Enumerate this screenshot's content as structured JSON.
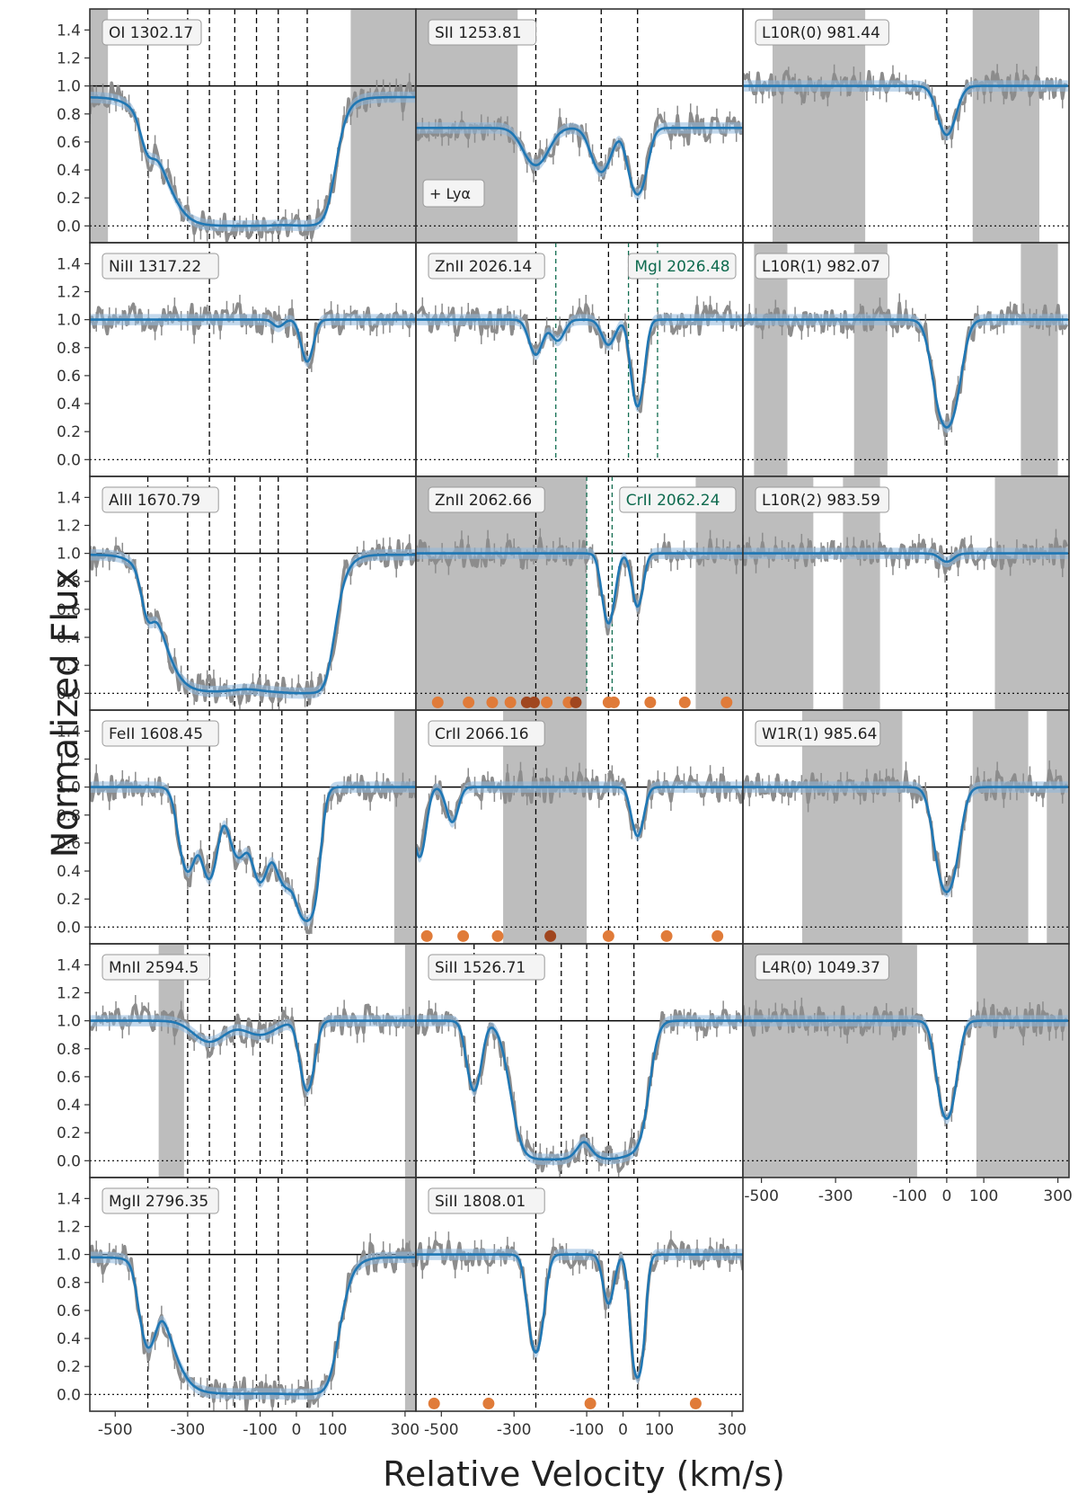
{
  "figure": {
    "ylabel": "Normalized Flux",
    "xlabel": "Relative Velocity (km/s)"
  },
  "colors": {
    "data": "#8c8c8c",
    "model": "#1f77b4",
    "band": "#8fb8dc",
    "mask": "#bdbdbd",
    "dots": "#e07b39",
    "dots_dark": "#a0461f",
    "blend": "#0f6b4f"
  },
  "chart_data": {
    "type": "line",
    "y_ticks": [
      "1.4",
      "1.2",
      "1.0",
      "0.8",
      "0.6",
      "0.4",
      "0.2",
      "0.0"
    ],
    "ylim": [
      -0.12,
      1.55
    ],
    "columns": [
      {
        "xlim": [
          -570,
          330
        ],
        "x_ticks": [
          -500,
          -300,
          -100,
          0,
          100,
          300
        ],
        "x_tick_labels": [
          "-500",
          "-300",
          "-100",
          "0",
          "100",
          "300"
        ]
      },
      {
        "xlim": [
          -570,
          330
        ],
        "x_ticks": [
          -500,
          -300,
          -100,
          0,
          100,
          300
        ],
        "x_tick_labels": [
          "-500",
          "-300",
          "-100",
          "0",
          "100",
          "300"
        ]
      },
      {
        "xlim": [
          -550,
          330
        ],
        "x_ticks": [
          -500,
          -300,
          -100,
          0,
          100,
          300
        ],
        "x_tick_labels": [
          "-500",
          "-300",
          "-100",
          "0",
          "100",
          "300"
        ]
      }
    ],
    "panels": [
      {
        "label": "OI 1302.17",
        "row": 0,
        "col": 0,
        "continuum": 0.92,
        "components": [
          {
            "v": -410,
            "d": 0.25,
            "w": 25
          },
          {
            "v": -200,
            "d": 1.0,
            "w": 130
          },
          {
            "v": -100,
            "d": 1.0,
            "w": 120
          },
          {
            "v": 30,
            "d": 1.0,
            "w": 55
          }
        ],
        "vlines": [
          -410,
          -300,
          -240,
          -170,
          -110,
          -50,
          30
        ],
        "mask": [
          [
            -570,
            -520
          ],
          [
            150,
            330
          ]
        ]
      },
      {
        "label": "SII 1253.81",
        "row": 0,
        "col": 1,
        "continuum": 0.7,
        "note": "+ Lyα",
        "components": [
          {
            "v": -240,
            "d": 0.38,
            "w": 45
          },
          {
            "v": -60,
            "d": 0.45,
            "w": 35
          },
          {
            "v": 40,
            "d": 0.68,
            "w": 30
          }
        ],
        "vlines": [
          -240,
          -60,
          40
        ],
        "mask": [
          [
            -570,
            -290
          ]
        ]
      },
      {
        "label": "L10R(0) 981.44",
        "row": 0,
        "col": 2,
        "continuum": 1.0,
        "components": [
          {
            "v": 0,
            "d": 0.35,
            "w": 32
          }
        ],
        "vlines": [
          0
        ],
        "mask": [
          [
            -470,
            -220
          ],
          [
            70,
            250
          ]
        ]
      },
      {
        "label": "NiII 1317.22",
        "row": 1,
        "col": 0,
        "continuum": 1.0,
        "components": [
          {
            "v": 30,
            "d": 0.3,
            "w": 22
          },
          {
            "v": -50,
            "d": 0.05,
            "w": 20
          }
        ],
        "vlines": [
          -240,
          30
        ],
        "mask": []
      },
      {
        "label": "ZnII 2026.14",
        "row": 1,
        "col": 1,
        "continuum": 1.0,
        "components": [
          {
            "v": -240,
            "d": 0.25,
            "w": 25
          },
          {
            "v": -180,
            "d": 0.15,
            "w": 25
          },
          {
            "v": -40,
            "d": 0.18,
            "w": 25
          },
          {
            "v": 40,
            "d": 0.62,
            "w": 22
          }
        ],
        "vlines": [
          -240,
          -40,
          40
        ],
        "blend_label": "MgI 2026.48",
        "blend_vlines": [
          -185,
          15,
          95
        ],
        "mask": []
      },
      {
        "label": "L10R(1) 982.07",
        "row": 1,
        "col": 2,
        "continuum": 1.0,
        "components": [
          {
            "v": 0,
            "d": 0.77,
            "w": 38
          }
        ],
        "vlines": [
          0
        ],
        "mask": [
          [
            -520,
            -430
          ],
          [
            -250,
            -160
          ],
          [
            200,
            300
          ]
        ]
      },
      {
        "label": "AlII 1670.79",
        "row": 2,
        "col": 0,
        "continuum": 0.99,
        "components": [
          {
            "v": -410,
            "d": 0.3,
            "w": 22
          },
          {
            "v": -230,
            "d": 1.0,
            "w": 110
          },
          {
            "v": -40,
            "d": 1.0,
            "w": 95
          },
          {
            "v": 30,
            "d": 1.0,
            "w": 50
          }
        ],
        "vlines": [
          -410,
          -300,
          -240,
          -170,
          -100,
          -50,
          30
        ],
        "mask": []
      },
      {
        "label": "ZnII 2062.66",
        "row": 2,
        "col": 1,
        "continuum": 1.0,
        "components": [
          {
            "v": -40,
            "d": 0.5,
            "w": 22
          },
          {
            "v": 40,
            "d": 0.38,
            "w": 20
          }
        ],
        "vlines": [
          -240,
          -40,
          40
        ],
        "blend_label": "CrII 2062.24",
        "blend_vlines": [
          -100,
          -30
        ],
        "mask": [
          [
            -570,
            -100
          ],
          [
            200,
            330
          ]
        ],
        "dots": [
          -510,
          -425,
          -360,
          -310,
          -265,
          -245,
          -210,
          -150,
          -130,
          -40,
          -25,
          75,
          170,
          285
        ],
        "dots_dark": [
          -265,
          -245,
          -130
        ]
      },
      {
        "label": "L10R(2) 983.59",
        "row": 2,
        "col": 2,
        "continuum": 1.0,
        "components": [
          {
            "v": 0,
            "d": 0.06,
            "w": 25
          }
        ],
        "vlines": [
          0
        ],
        "mask": [
          [
            -550,
            -360
          ],
          [
            -280,
            -180
          ],
          [
            130,
            330
          ]
        ]
      },
      {
        "label": "FeII 1608.45",
        "row": 3,
        "col": 0,
        "continuum": 1.0,
        "components": [
          {
            "v": -300,
            "d": 0.6,
            "w": 30
          },
          {
            "v": -240,
            "d": 0.65,
            "w": 28
          },
          {
            "v": -160,
            "d": 0.5,
            "w": 35
          },
          {
            "v": -100,
            "d": 0.65,
            "w": 28
          },
          {
            "v": -30,
            "d": 0.7,
            "w": 40
          },
          {
            "v": 30,
            "d": 0.95,
            "w": 30
          }
        ],
        "vlines": [
          -300,
          -240,
          -170,
          -100,
          -40,
          30
        ],
        "mask": [
          [
            270,
            330
          ]
        ]
      },
      {
        "label": "CrII 2066.16",
        "row": 3,
        "col": 1,
        "continuum": 1.0,
        "components": [
          {
            "v": -560,
            "d": 0.5,
            "w": 22
          },
          {
            "v": -470,
            "d": 0.25,
            "w": 22
          },
          {
            "v": 40,
            "d": 0.35,
            "w": 22
          }
        ],
        "vlines": [
          -240,
          -40,
          40
        ],
        "mask": [
          [
            -330,
            -100
          ]
        ],
        "dots": [
          -540,
          -440,
          -345,
          -200,
          -40,
          120,
          260
        ],
        "dots_dark": [
          -200
        ]
      },
      {
        "label": "W1R(1) 985.64",
        "row": 3,
        "col": 2,
        "continuum": 1.0,
        "components": [
          {
            "v": 0,
            "d": 0.75,
            "w": 35
          }
        ],
        "vlines": [
          0
        ],
        "mask": [
          [
            -390,
            -120
          ],
          [
            70,
            220
          ],
          [
            270,
            330
          ]
        ]
      },
      {
        "label": "MnII 2594.5",
        "row": 4,
        "col": 0,
        "continuum": 1.0,
        "components": [
          {
            "v": -240,
            "d": 0.15,
            "w": 60
          },
          {
            "v": -100,
            "d": 0.1,
            "w": 60
          },
          {
            "v": 30,
            "d": 0.5,
            "w": 25
          }
        ],
        "vlines": [
          -300,
          -240,
          -170,
          -100,
          -40,
          30
        ],
        "mask": [
          [
            -380,
            -310
          ],
          [
            300,
            330
          ]
        ]
      },
      {
        "label": "SiII 1526.71",
        "row": 4,
        "col": 1,
        "continuum": 1.0,
        "components": [
          {
            "v": -410,
            "d": 0.5,
            "w": 25
          },
          {
            "v": -230,
            "d": 1.0,
            "w": 60
          },
          {
            "v": -160,
            "d": 0.95,
            "w": 45
          },
          {
            "v": -40,
            "d": 1.0,
            "w": 60
          },
          {
            "v": 30,
            "d": 0.8,
            "w": 40
          }
        ],
        "vlines": [
          -410,
          -240,
          -170,
          -100,
          -40,
          30
        ],
        "mask": []
      },
      {
        "label": "L4R(0) 1049.37",
        "row": 4,
        "col": 2,
        "continuum": 1.0,
        "components": [
          {
            "v": 0,
            "d": 0.7,
            "w": 30
          }
        ],
        "vlines": [
          0
        ],
        "mask": [
          [
            -550,
            -80
          ],
          [
            80,
            330
          ]
        ]
      },
      {
        "label": "MgII 2796.35",
        "row": 5,
        "col": 0,
        "continuum": 0.98,
        "components": [
          {
            "v": -410,
            "d": 0.6,
            "w": 28
          },
          {
            "v": -210,
            "d": 1.0,
            "w": 110
          },
          {
            "v": -60,
            "d": 1.0,
            "w": 110
          },
          {
            "v": 30,
            "d": 1.0,
            "w": 60
          }
        ],
        "vlines": [
          -410,
          -300,
          -240,
          -170,
          -110,
          -50,
          30
        ],
        "mask": [
          [
            300,
            330
          ]
        ]
      },
      {
        "label": "SiII 1808.01",
        "row": 5,
        "col": 1,
        "continuum": 1.0,
        "components": [
          {
            "v": -240,
            "d": 0.7,
            "w": 25
          },
          {
            "v": -40,
            "d": 0.35,
            "w": 20
          },
          {
            "v": 40,
            "d": 0.88,
            "w": 20
          }
        ],
        "vlines": [
          -240,
          -40,
          40
        ],
        "mask": [],
        "dots": [
          -520,
          -370,
          -90,
          200
        ],
        "dots_dark": []
      }
    ]
  }
}
